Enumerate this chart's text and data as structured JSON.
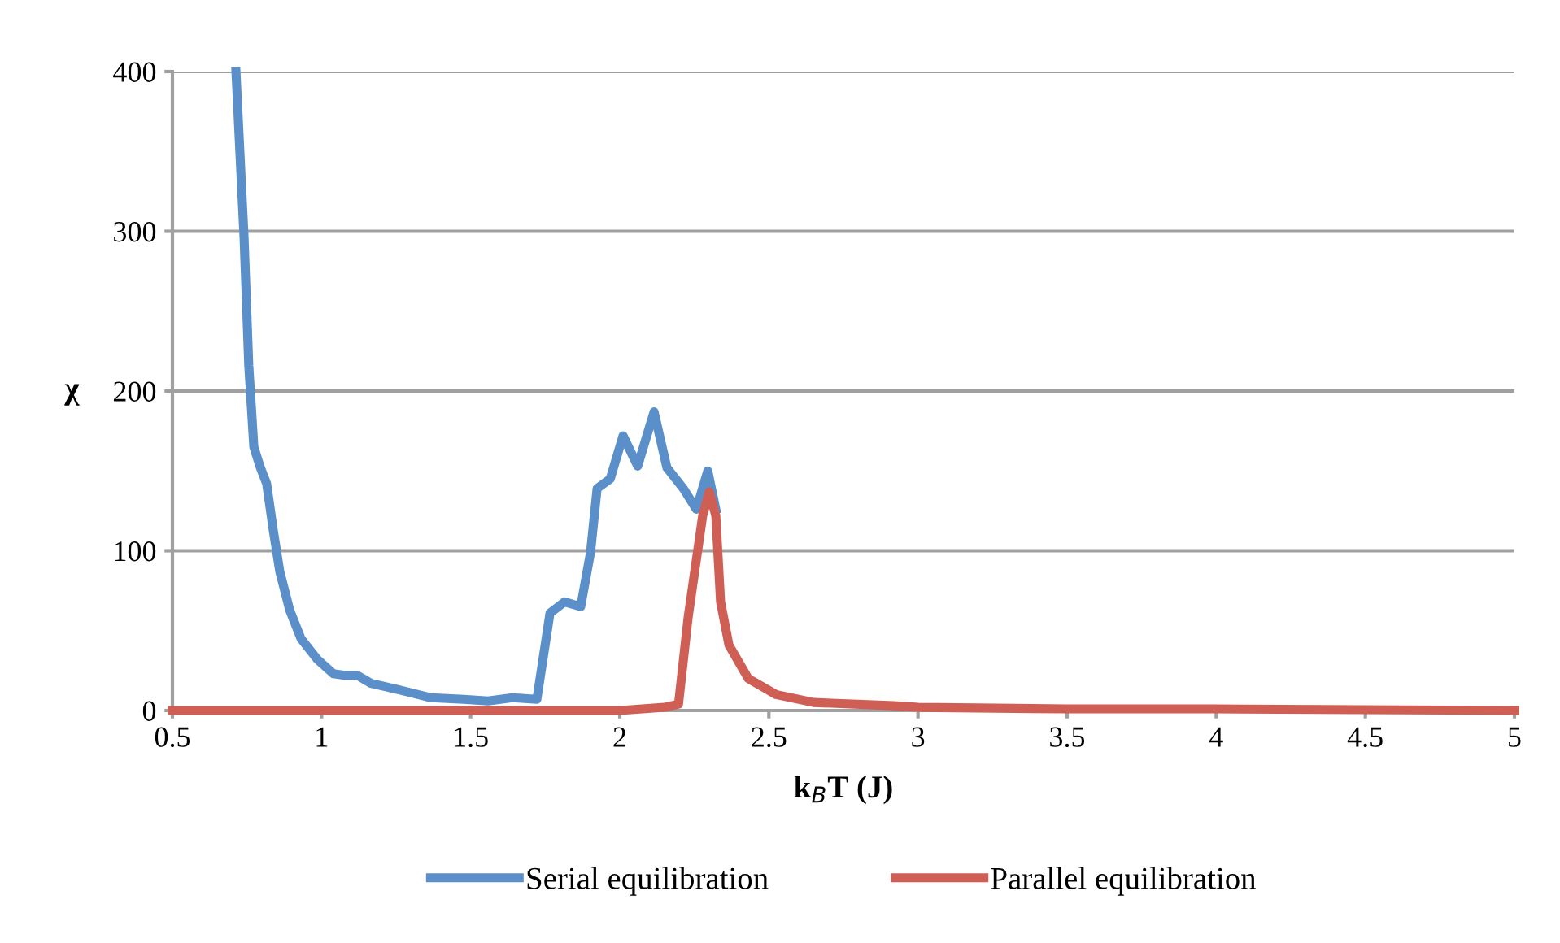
{
  "chart_data": {
    "type": "line",
    "xlabel": "k$_{B}$T (J)",
    "ylabel": "χ",
    "xlim": [
      0.5,
      5
    ],
    "xticks": [
      0.5,
      1,
      1.5,
      2,
      2.5,
      3,
      3.5,
      4,
      4.5,
      5
    ],
    "ylim": [
      0,
      400
    ],
    "yticks": [
      0,
      100,
      200,
      300,
      400
    ],
    "grid": "y",
    "legend": "bottom",
    "marker": "none",
    "line_style": "solid",
    "series": [
      {
        "name": "Serial equilibration",
        "color": "#5b8fc9",
        "x": [
          0.713,
          0.74,
          0.756,
          0.773,
          0.795,
          0.816,
          0.838,
          0.86,
          0.893,
          0.931,
          0.986,
          1.04,
          1.078,
          1.12,
          1.166,
          1.258,
          1.367,
          1.477,
          1.558,
          1.64,
          1.722,
          1.766,
          1.815,
          1.869,
          1.902,
          1.924,
          1.968,
          2.011,
          2.06,
          2.115,
          2.158,
          2.213,
          2.257,
          2.295,
          2.322
        ],
        "values": [
          400,
          297,
          216,
          165,
          152,
          142,
          113,
          87,
          63,
          45,
          32,
          23,
          22,
          22,
          17,
          13,
          8,
          7,
          6,
          8,
          7,
          61,
          68,
          65,
          99,
          139,
          145,
          172,
          153,
          187,
          152,
          139,
          126,
          150,
          126
        ]
      },
      {
        "name": "Parallel equilibration",
        "color": "#cf5f55",
        "x": [
          0.5,
          1.0,
          1.5,
          2.0,
          2.15,
          2.197,
          2.229,
          2.278,
          2.3,
          2.322,
          2.338,
          2.366,
          2.431,
          2.524,
          2.65,
          2.92,
          3.0,
          3.5,
          4.0,
          5.0
        ],
        "values": [
          0,
          0,
          0,
          0,
          2,
          4,
          58,
          122,
          137,
          122,
          68,
          41,
          20,
          10,
          5,
          3,
          2,
          1,
          1,
          0
        ]
      }
    ]
  }
}
